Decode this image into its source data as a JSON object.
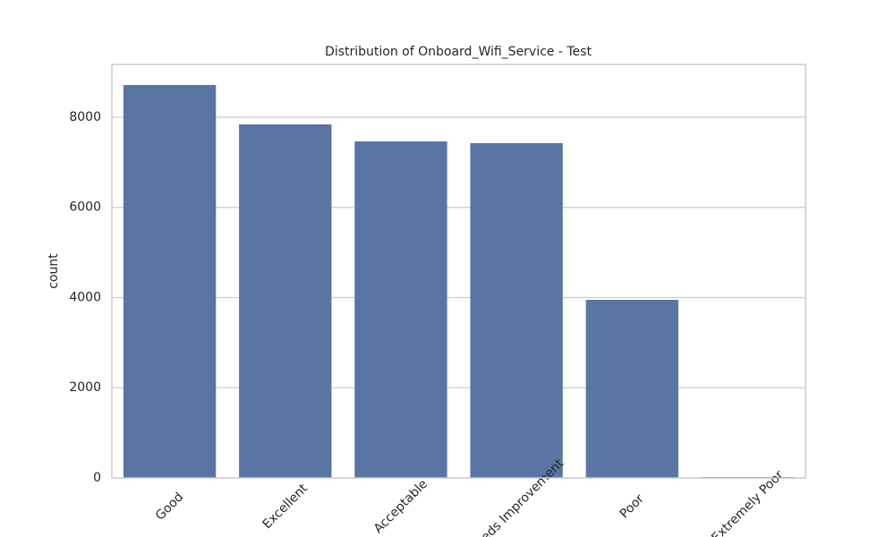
{
  "chart_data": {
    "type": "bar",
    "title": "Distribution of Onboard_Wifi_Service - Test",
    "y_label": "count",
    "categories": [
      "Good",
      "Excellent",
      "Acceptable",
      "Needs Improvement",
      "Poor",
      "Extremely Poor"
    ],
    "values": [
      8715,
      7841,
      7464,
      7424,
      3950,
      20
    ],
    "color": "#5875a4",
    "ylim": [
      0,
      9171
    ],
    "yticks": [
      0,
      2000,
      4000,
      6000,
      8000
    ],
    "grid": true
  }
}
